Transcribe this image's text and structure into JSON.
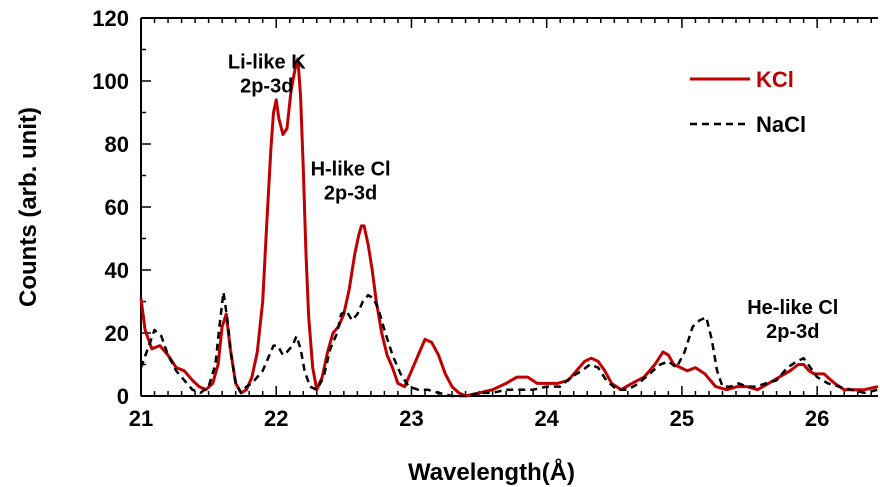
{
  "chart_data": {
    "type": "line",
    "xlabel": "Wavelength(Å)",
    "ylabel": "Counts (arb. unit)",
    "xlim": [
      21,
      26.45
    ],
    "ylim": [
      0,
      120
    ],
    "x_ticks": [
      "21",
      "22",
      "23",
      "24",
      "25",
      "26"
    ],
    "y_ticks": [
      "0",
      "20",
      "40",
      "60",
      "80",
      "100",
      "120"
    ],
    "legend_position": "top-right",
    "annotations": [
      {
        "lines": [
          "Li-like K",
          "2p-3d"
        ],
        "x": 21.93,
        "y": 104
      },
      {
        "lines": [
          "H-like Cl",
          "2p-3d"
        ],
        "x": 22.55,
        "y": 70
      },
      {
        "lines": [
          "He-like Cl",
          "2p-3d"
        ],
        "x": 25.82,
        "y": 26
      }
    ],
    "series": [
      {
        "name": "KCl",
        "color": "#c00000",
        "dash": "solid",
        "x": [
          21.0,
          21.03,
          21.08,
          21.14,
          21.2,
          21.26,
          21.32,
          21.38,
          21.43,
          21.48,
          21.53,
          21.57,
          21.6,
          21.63,
          21.66,
          21.7,
          21.74,
          21.78,
          21.82,
          21.86,
          21.9,
          21.93,
          21.96,
          21.98,
          22.0,
          22.02,
          22.05,
          22.08,
          22.11,
          22.14,
          22.16,
          22.18,
          22.2,
          22.22,
          22.24,
          22.27,
          22.3,
          22.34,
          22.38,
          22.42,
          22.46,
          22.5,
          22.54,
          22.58,
          22.61,
          22.63,
          22.65,
          22.68,
          22.71,
          22.74,
          22.78,
          22.82,
          22.86,
          22.9,
          22.95,
          23.0,
          23.05,
          23.1,
          23.15,
          23.2,
          23.25,
          23.3,
          23.35,
          23.4,
          23.5,
          23.6,
          23.7,
          23.78,
          23.86,
          23.93,
          24.0,
          24.08,
          24.16,
          24.22,
          24.28,
          24.33,
          24.38,
          24.43,
          24.48,
          24.55,
          24.63,
          24.72,
          24.8,
          24.86,
          24.9,
          24.94,
          24.99,
          25.04,
          25.1,
          25.17,
          25.25,
          25.33,
          25.41,
          25.48,
          25.56,
          25.64,
          25.72,
          25.8,
          25.86,
          25.9,
          25.94,
          25.98,
          26.05,
          26.13,
          26.2,
          26.28,
          26.35,
          26.45
        ],
        "y": [
          31,
          21,
          15,
          16,
          13,
          9,
          8,
          5,
          3,
          2,
          4,
          10,
          22,
          26,
          15,
          4,
          1,
          2,
          6,
          14,
          30,
          55,
          78,
          90,
          94,
          88,
          83,
          85,
          97,
          104,
          107,
          95,
          72,
          45,
          25,
          9,
          2,
          6,
          14,
          20,
          22,
          26,
          34,
          45,
          51,
          54,
          54,
          48,
          40,
          30,
          20,
          13,
          9,
          4,
          3,
          8,
          13,
          18,
          17,
          13,
          7,
          3,
          1,
          0,
          1,
          2,
          4,
          6,
          6,
          4,
          4,
          4,
          5,
          8,
          11,
          12,
          11,
          8,
          4,
          2,
          4,
          6,
          10,
          14,
          13,
          10,
          9,
          8,
          9,
          7,
          3,
          2,
          3,
          3,
          2,
          4,
          6,
          8,
          10,
          10,
          8,
          7,
          7,
          4,
          2,
          2,
          2,
          3
        ]
      },
      {
        "name": "NaCl",
        "color": "#000000",
        "dash": "dashed",
        "x": [
          21.0,
          21.05,
          21.1,
          21.15,
          21.2,
          21.26,
          21.32,
          21.38,
          21.44,
          21.5,
          21.55,
          21.58,
          21.61,
          21.64,
          21.67,
          21.7,
          21.74,
          21.78,
          21.82,
          21.86,
          21.9,
          21.94,
          21.98,
          22.01,
          22.05,
          22.08,
          22.12,
          22.15,
          22.18,
          22.21,
          22.25,
          22.3,
          22.35,
          22.4,
          22.45,
          22.48,
          22.52,
          22.56,
          22.6,
          22.64,
          22.68,
          22.72,
          22.76,
          22.8,
          22.86,
          22.92,
          22.98,
          23.05,
          23.12,
          23.2,
          23.3,
          23.4,
          23.5,
          23.6,
          23.7,
          23.8,
          23.9,
          24.0,
          24.1,
          24.18,
          24.26,
          24.32,
          24.38,
          24.44,
          24.52,
          24.6,
          24.68,
          24.76,
          24.84,
          24.9,
          24.96,
          25.02,
          25.08,
          25.13,
          25.18,
          25.22,
          25.26,
          25.3,
          25.36,
          25.42,
          25.48,
          25.55,
          25.62,
          25.7,
          25.78,
          25.85,
          25.9,
          25.95,
          26.0,
          26.08,
          26.16,
          26.25,
          26.35,
          26.45
        ],
        "y": [
          9,
          15,
          21,
          19,
          13,
          8,
          5,
          2,
          1,
          3,
          10,
          22,
          33,
          24,
          12,
          4,
          1,
          3,
          4,
          6,
          8,
          12,
          16,
          16,
          13,
          14,
          16,
          19,
          15,
          8,
          3,
          2,
          6,
          15,
          20,
          26,
          27,
          24,
          26,
          30,
          32,
          31,
          27,
          21,
          13,
          7,
          3,
          2,
          2,
          1,
          0,
          0,
          1,
          1,
          2,
          2,
          2,
          3,
          3,
          6,
          8,
          10,
          9,
          5,
          2,
          2,
          4,
          7,
          10,
          11,
          9,
          14,
          22,
          24,
          25,
          18,
          8,
          3,
          3,
          4,
          3,
          3,
          4,
          5,
          9,
          11,
          12,
          9,
          6,
          4,
          3,
          2,
          1,
          2
        ]
      }
    ]
  }
}
